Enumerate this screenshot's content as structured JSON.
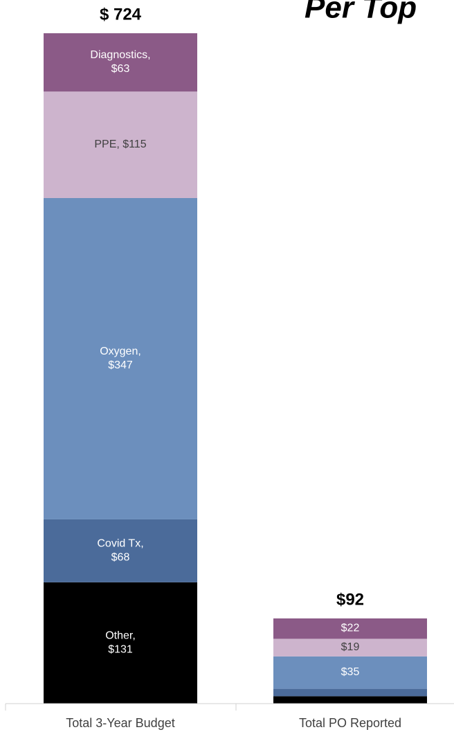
{
  "chart_data": {
    "type": "stacked_bar",
    "title": "Per Top",
    "categories": [
      "Total 3-Year Budget",
      "Total PO Reported"
    ],
    "series": [
      {
        "name": "Other",
        "color": "#000000",
        "values": [
          131,
          8
        ],
        "value_labels": [
          "Other,\n$131",
          null
        ]
      },
      {
        "name": "Covid Tx",
        "color": "#4b6b9a",
        "values": [
          68,
          8
        ],
        "value_labels": [
          "Covid Tx,\n$68",
          null
        ]
      },
      {
        "name": "Oxygen",
        "color": "#6c8fbd",
        "values": [
          347,
          35
        ],
        "value_labels": [
          "Oxygen,\n$347",
          "$35"
        ]
      },
      {
        "name": "PPE",
        "color": "#cdb4cd",
        "values": [
          115,
          19
        ],
        "value_labels": [
          "PPE,  $115",
          "$19"
        ]
      },
      {
        "name": "Diagnostics",
        "color": "#8b5a87",
        "values": [
          63,
          22
        ],
        "value_labels": [
          "Diagnostics,\n$63",
          "$22"
        ]
      }
    ],
    "totals": [
      724,
      92
    ],
    "total_labels": [
      "$ 724",
      "$92"
    ],
    "ylim": [
      0,
      724
    ]
  }
}
